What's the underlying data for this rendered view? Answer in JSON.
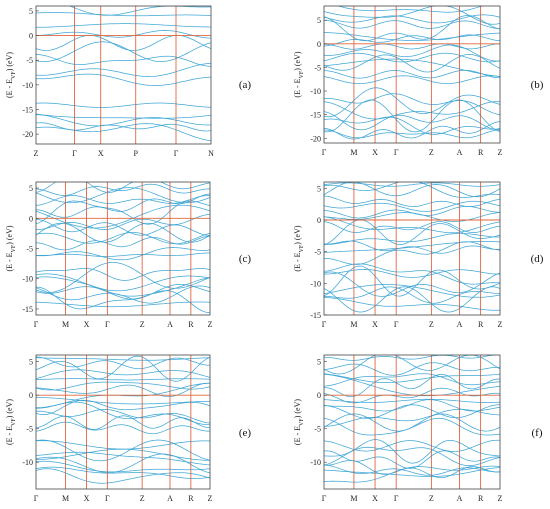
{
  "figure": {
    "y_axis_label_prefix": "(E - E",
    "y_axis_label_sub": "VF",
    "y_axis_label_suffix": ") (eV)",
    "colors": {
      "bands": "#3fa7d6",
      "kpath_lines": "#d9542b",
      "fermi_line": "#e0663a",
      "frame": "#444444"
    }
  },
  "chart_data": [
    {
      "type": "line",
      "panel_label": "(a)",
      "x_tick_labels": [
        "Z",
        "Γ",
        "X",
        "P",
        "Γ",
        "N"
      ],
      "x_tick_positions": [
        0,
        0.22,
        0.37,
        0.57,
        0.8,
        1
      ],
      "ylim": [
        -22,
        6
      ],
      "y_ticks": [
        5,
        0,
        -5,
        -10,
        -15,
        -20
      ],
      "fermi_level": 0,
      "grid": false,
      "legend": "none"
    },
    {
      "type": "line",
      "panel_label": "(b)",
      "x_tick_labels": [
        "Γ",
        "M",
        "X",
        "Γ",
        "Z",
        "A",
        "R",
        "Z"
      ],
      "x_tick_positions": [
        0,
        0.17,
        0.29,
        0.41,
        0.61,
        0.77,
        0.89,
        1
      ],
      "ylim": [
        -21,
        8
      ],
      "y_ticks": [
        5,
        0,
        -5,
        -10,
        -15,
        -20
      ],
      "fermi_level": 0,
      "grid": false,
      "legend": "none"
    },
    {
      "type": "line",
      "panel_label": "(c)",
      "x_tick_labels": [
        "Γ",
        "M",
        "X",
        "Γ",
        "Z",
        "A",
        "R",
        "Z"
      ],
      "x_tick_positions": [
        0,
        0.17,
        0.29,
        0.41,
        0.61,
        0.77,
        0.89,
        1
      ],
      "ylim": [
        -16,
        6
      ],
      "y_ticks": [
        5,
        0,
        -5,
        -10,
        -15
      ],
      "fermi_level": 0,
      "grid": false,
      "legend": "none"
    },
    {
      "type": "line",
      "panel_label": "(d)",
      "x_tick_labels": [
        "Γ",
        "M",
        "X",
        "Γ",
        "Z",
        "A",
        "R",
        "Z"
      ],
      "x_tick_positions": [
        0,
        0.17,
        0.29,
        0.41,
        0.61,
        0.77,
        0.89,
        1
      ],
      "ylim": [
        -15,
        6
      ],
      "y_ticks": [
        5,
        0,
        -5,
        -10,
        -15
      ],
      "fermi_level": 0,
      "grid": false,
      "legend": "none"
    },
    {
      "type": "line",
      "panel_label": "(e)",
      "x_tick_labels": [
        "Γ",
        "M",
        "X",
        "Γ",
        "Z",
        "A",
        "R",
        "Z"
      ],
      "x_tick_positions": [
        0,
        0.17,
        0.29,
        0.41,
        0.61,
        0.77,
        0.89,
        1
      ],
      "ylim": [
        -14,
        6
      ],
      "y_ticks": [
        5,
        0,
        -5,
        -10
      ],
      "fermi_level": 0,
      "grid": false,
      "legend": "none"
    },
    {
      "type": "line",
      "panel_label": "(f)",
      "x_tick_labels": [
        "Γ",
        "M",
        "X",
        "Γ",
        "Z",
        "A",
        "R",
        "Z"
      ],
      "x_tick_positions": [
        0,
        0.17,
        0.29,
        0.41,
        0.61,
        0.77,
        0.89,
        1
      ],
      "ylim": [
        -14,
        6
      ],
      "y_ticks": [
        5,
        0,
        -5,
        -10
      ],
      "fermi_level": 0,
      "grid": false,
      "legend": "none"
    }
  ]
}
